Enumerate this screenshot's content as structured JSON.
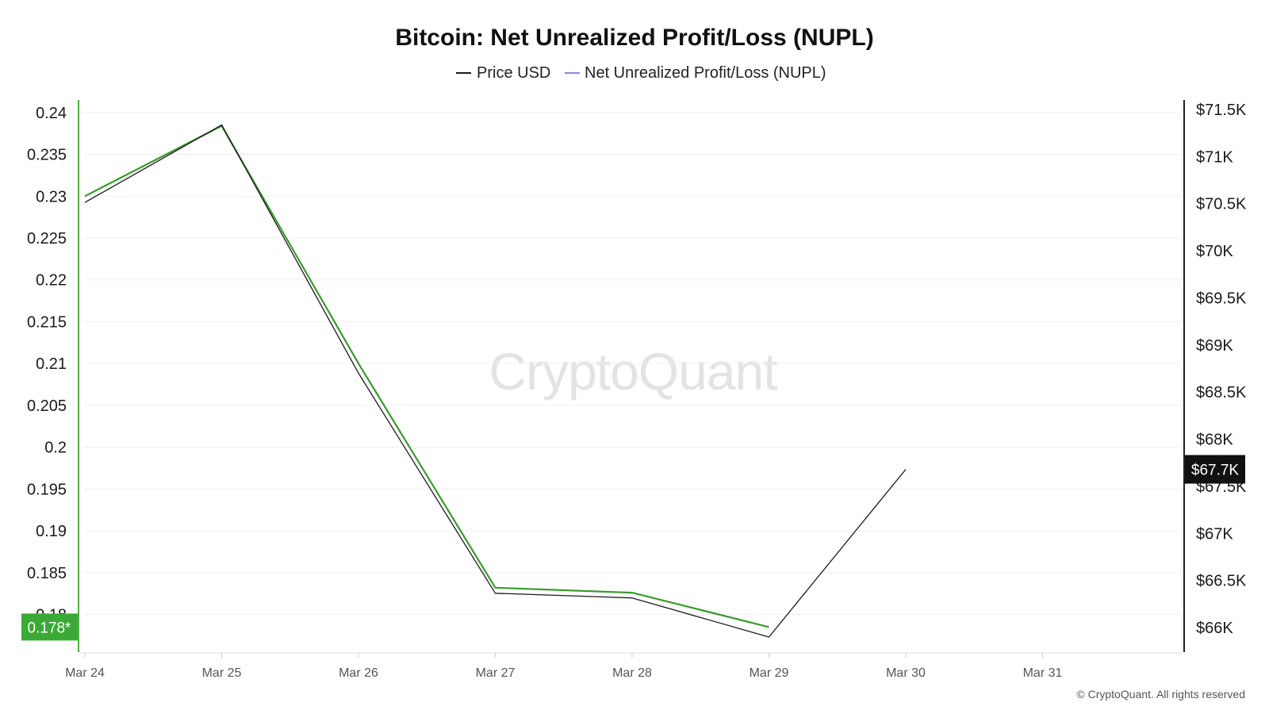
{
  "chart_data": {
    "type": "line",
    "title": "Bitcoin: Net Unrealized Profit/Loss (NUPL)",
    "x": [
      "Mar 24",
      "Mar 25",
      "Mar 26",
      "Mar 27",
      "Mar 28",
      "Mar 29",
      "Mar 30"
    ],
    "x_ticks": [
      "Mar 24",
      "Mar 25",
      "Mar 26",
      "Mar 27",
      "Mar 28",
      "Mar 29",
      "Mar 30",
      "Mar 31"
    ],
    "series": [
      {
        "name": "Price USD",
        "axis": "right",
        "color": "#1a1a1a",
        "values": [
          70512,
          71335,
          68700,
          66365,
          66315,
          65900,
          67680
        ]
      },
      {
        "name": "Net Unrealized Profit/Loss (NUPL)",
        "legend_color": "#8888dd",
        "line_color": "#3a9a2e",
        "axis": "left",
        "values": [
          0.23,
          0.2384,
          0.21,
          0.1832,
          0.1826,
          0.1785,
          null
        ]
      }
    ],
    "y_left": {
      "ticks": [
        0.18,
        0.185,
        0.19,
        0.195,
        0.2,
        0.205,
        0.21,
        0.215,
        0.22,
        0.225,
        0.23,
        0.235,
        0.24
      ],
      "tick_labels": [
        "0.18",
        "0.185",
        "0.19",
        "0.195",
        "0.2",
        "0.205",
        "0.21",
        "0.215",
        "0.22",
        "0.225",
        "0.23",
        "0.235",
        "0.24"
      ],
      "range": [
        0.1755,
        0.2415
      ]
    },
    "y_right": {
      "ticks": [
        66000,
        66500,
        67000,
        67500,
        68000,
        68500,
        69000,
        69500,
        70000,
        70500,
        71000,
        71500
      ],
      "tick_labels": [
        "$66K",
        "$66.5K",
        "$67K",
        "$67.5K",
        "$68K",
        "$68.5K",
        "$69K",
        "$69.5K",
        "$70K",
        "$70.5K",
        "$71K",
        "$71.5K"
      ],
      "range": [
        65740,
        71600
      ]
    },
    "current_badges": {
      "left": {
        "label": "0.178*",
        "value": 0.1785,
        "color": "#3aa935"
      },
      "right": {
        "label": "$67.7K",
        "value": 67680,
        "color": "#111111"
      }
    },
    "grid": true,
    "legend_position": "top-center"
  },
  "watermark": "CryptoQuant",
  "copyright": "© CryptoQuant. All rights reserved"
}
